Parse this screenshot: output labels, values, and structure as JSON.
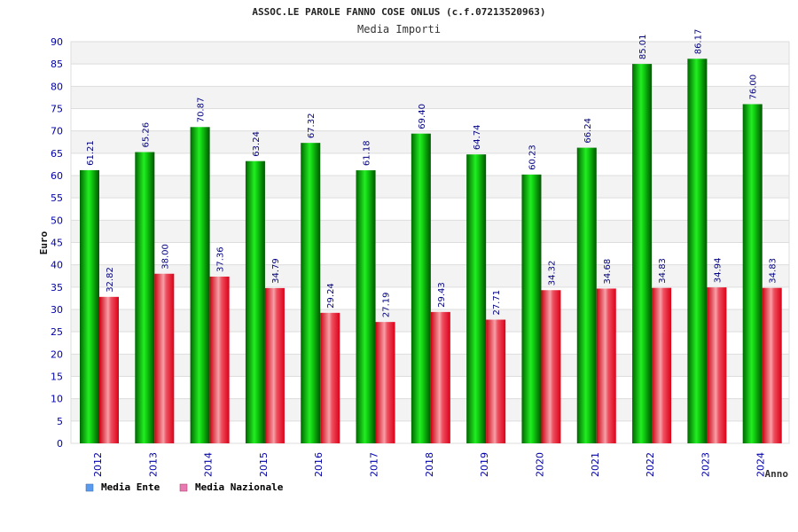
{
  "chart_data": {
    "type": "bar",
    "title": "ASSOC.LE PAROLE FANNO COSE ONLUS (c.f.07213520963)",
    "subtitle": "Media Importi",
    "xlabel": "Anno",
    "ylabel": "Euro",
    "ylim": [
      0,
      90
    ],
    "ytick_step": 5,
    "yticks": [
      "0",
      "5",
      "10",
      "15",
      "20",
      "25",
      "30",
      "35",
      "40",
      "45",
      "50",
      "55",
      "60",
      "65",
      "70",
      "75",
      "80",
      "85",
      "90"
    ],
    "categories": [
      "2012",
      "2013",
      "2014",
      "2015",
      "2016",
      "2017",
      "2018",
      "2019",
      "2020",
      "2021",
      "2022",
      "2023",
      "2024"
    ],
    "series": [
      {
        "name": "Media Ente",
        "values": [
          61.21,
          65.26,
          70.87,
          63.24,
          67.32,
          61.18,
          69.4,
          64.74,
          60.23,
          66.24,
          85.01,
          86.17,
          76.0
        ],
        "labels": [
          "61.21",
          "65.26",
          "70.87",
          "63.24",
          "67.32",
          "61.18",
          "69.40",
          "64.74",
          "60.23",
          "66.24",
          "85.01",
          "86.17",
          "76.00"
        ],
        "color": "#00b400",
        "legend_color": "#5b9bef"
      },
      {
        "name": "Media Nazionale",
        "values": [
          32.82,
          38.0,
          37.36,
          34.79,
          29.24,
          27.19,
          29.43,
          27.71,
          34.32,
          34.68,
          34.83,
          34.94,
          34.83
        ],
        "labels": [
          "32.82",
          "38.00",
          "37.36",
          "34.79",
          "29.24",
          "27.19",
          "29.43",
          "27.71",
          "34.32",
          "34.68",
          "34.83",
          "34.94",
          "34.83"
        ],
        "color": "#e8102a",
        "legend_color": "#e77ab0"
      }
    ],
    "grid": true,
    "legend": "bottom-left"
  },
  "colors": {
    "axis_text": "#0000aa",
    "label_text": "#000080",
    "title_text": "#222222",
    "band_light": "#f3f3f3",
    "grid": "#dddddd"
  }
}
